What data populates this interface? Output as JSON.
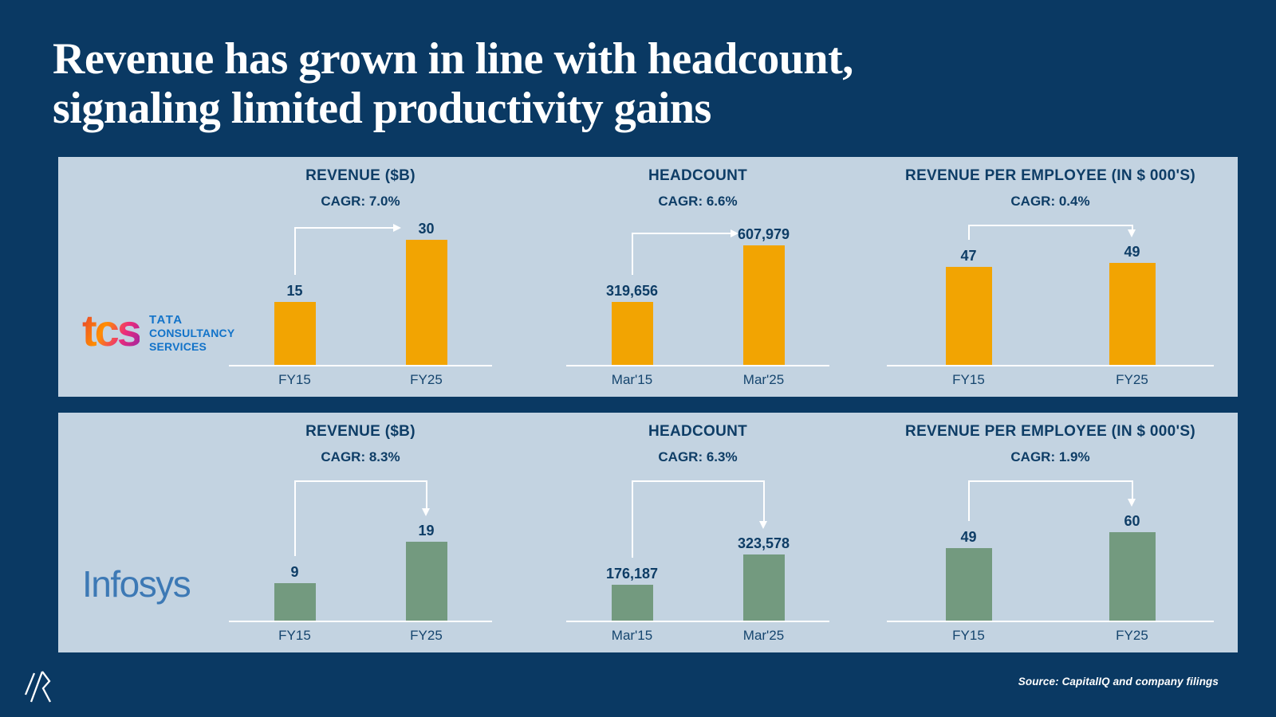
{
  "slide": {
    "title_line1": "Revenue has grown in line with headcount,",
    "title_line2": "signaling limited productivity gains",
    "source": "Source: CapitalIQ and company filings"
  },
  "logos": {
    "tcs": {
      "wordmark": "tcs",
      "line1": "TATA",
      "line2": "CONSULTANCY",
      "line3": "SERVICES"
    },
    "infosys": {
      "wordmark": "Infosys"
    }
  },
  "colors": {
    "background": "#0A3963",
    "panel": "#C3D3E1",
    "navy_text": "#0E3D66",
    "tcs_bar": "#F2A402",
    "infosys_bar": "#739A7F",
    "tcs_text_blue": "#1273C9",
    "infosys_blue": "#3D79B5",
    "arrow_white": "#FFFFFF"
  },
  "chart_data": [
    {
      "company": "TCS",
      "type": "bar",
      "title": "REVENUE ($B)",
      "cagr_label": "CAGR: 7.0%",
      "categories": [
        "FY15",
        "FY25"
      ],
      "values": [
        15,
        30
      ],
      "value_labels": [
        "15",
        "30"
      ],
      "ylim": [
        0,
        34
      ],
      "arrow_style": "right",
      "bar_color": "#F2A402"
    },
    {
      "company": "TCS",
      "type": "bar",
      "title": "HEADCOUNT",
      "cagr_label": "CAGR: 6.6%",
      "categories": [
        "Mar'15",
        "Mar'25"
      ],
      "values": [
        319656,
        607979
      ],
      "value_labels": [
        "319,656",
        "607,979"
      ],
      "ylim": [
        0,
        720000
      ],
      "arrow_style": "right",
      "bar_color": "#F2A402"
    },
    {
      "company": "TCS",
      "type": "bar",
      "title": "REVENUE PER EMPLOYEE (IN $ 000'S)",
      "cagr_label": "CAGR: 0.4%",
      "categories": [
        "FY15",
        "FY25"
      ],
      "values": [
        47,
        49
      ],
      "value_labels": [
        "47",
        "49"
      ],
      "ylim": [
        0,
        68
      ],
      "arrow_style": "down",
      "bar_color": "#F2A402"
    },
    {
      "company": "Infosys",
      "type": "bar",
      "title": "REVENUE ($B)",
      "cagr_label": "CAGR: 8.3%",
      "categories": [
        "FY15",
        "FY25"
      ],
      "values": [
        9,
        19
      ],
      "value_labels": [
        "9",
        "19"
      ],
      "ylim": [
        0,
        34
      ],
      "arrow_style": "down",
      "bar_color": "#739A7F"
    },
    {
      "company": "Infosys",
      "type": "bar",
      "title": "HEADCOUNT",
      "cagr_label": "CAGR: 6.3%",
      "categories": [
        "Mar'15",
        "Mar'25"
      ],
      "values": [
        176187,
        323578
      ],
      "value_labels": [
        "176,187",
        "323,578"
      ],
      "ylim": [
        0,
        695000
      ],
      "arrow_style": "down",
      "bar_color": "#739A7F"
    },
    {
      "company": "Infosys",
      "type": "bar",
      "title": "REVENUE PER EMPLOYEE (IN $ 000'S)",
      "cagr_label": "CAGR: 1.9%",
      "categories": [
        "FY15",
        "FY25"
      ],
      "values": [
        49,
        60
      ],
      "value_labels": [
        "49",
        "60"
      ],
      "ylim": [
        0,
        96
      ],
      "arrow_style": "down",
      "bar_color": "#739A7F"
    }
  ]
}
